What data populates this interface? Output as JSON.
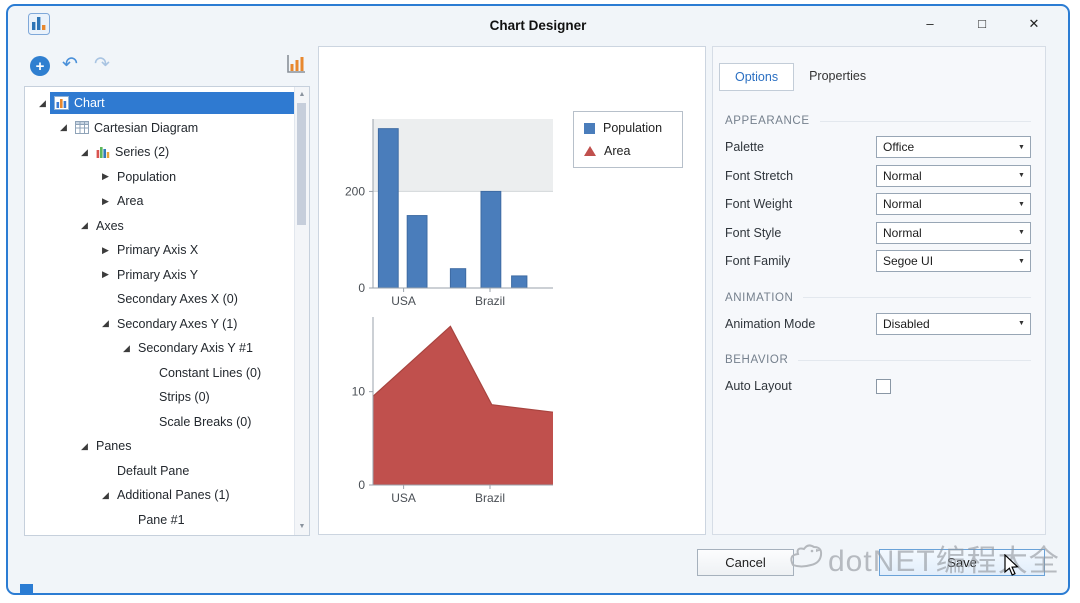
{
  "window": {
    "title": "Chart Designer",
    "minimize_glyph": "–",
    "maximize_glyph": "□",
    "close_glyph": "✕"
  },
  "toolbar": {
    "add_glyph": "+",
    "undo_glyph": "↶",
    "redo_glyph": "↷"
  },
  "icons": {
    "scroll_up": "▲",
    "scroll_down": "▼",
    "dropdown_arrow": "▼",
    "expander_expanded": "◢",
    "expander_collapsed": "▶"
  },
  "colors": {
    "selection": "#2f7ad1",
    "window_border": "#2b7cd3",
    "bar_series": "#4a7dbb",
    "area_series": "#c0504d",
    "tab_active_text": "#2a6fc2"
  },
  "tree": {
    "items": [
      {
        "label": "Chart",
        "level": 0,
        "state": "expanded",
        "icon": "chart-node-icon",
        "selected": true
      },
      {
        "label": "Cartesian Diagram",
        "level": 1,
        "state": "expanded",
        "icon": "diagram-grid-icon"
      },
      {
        "label": "Series (2)",
        "level": 2,
        "state": "expanded",
        "icon": "series-bars-icon"
      },
      {
        "label": "Population",
        "level": 3,
        "state": "collapsed"
      },
      {
        "label": "Area",
        "level": 3,
        "state": "collapsed"
      },
      {
        "label": "Axes",
        "level": 2,
        "state": "expanded"
      },
      {
        "label": "Primary Axis X",
        "level": 3,
        "state": "collapsed"
      },
      {
        "label": "Primary Axis Y",
        "level": 3,
        "state": "collapsed"
      },
      {
        "label": "Secondary Axes X (0)",
        "level": 3,
        "state": "none"
      },
      {
        "label": "Secondary Axes Y (1)",
        "level": 3,
        "state": "expanded"
      },
      {
        "label": "Secondary Axis Y #1",
        "level": 4,
        "state": "expanded"
      },
      {
        "label": "Constant Lines (0)",
        "level": 5,
        "state": "none"
      },
      {
        "label": "Strips (0)",
        "level": 5,
        "state": "none"
      },
      {
        "label": "Scale Breaks (0)",
        "level": 5,
        "state": "none"
      },
      {
        "label": "Panes",
        "level": 2,
        "state": "expanded"
      },
      {
        "label": "Default Pane",
        "level": 3,
        "state": "none"
      },
      {
        "label": "Additional Panes (1)",
        "level": 3,
        "state": "expanded"
      },
      {
        "label": "Pane #1",
        "level": 4,
        "state": "none"
      }
    ]
  },
  "chart_data": [
    {
      "type": "bar",
      "pane": "Default Pane",
      "series_name": "Population",
      "x_tick_labels": [
        "USA",
        "Brazil"
      ],
      "tick_x": [
        0.17,
        0.65
      ],
      "y_ticks": [
        0,
        200
      ],
      "ylim": [
        0,
        350
      ],
      "values": [
        330,
        150,
        40,
        200,
        25
      ],
      "bar_x": [
        0.03,
        0.19,
        0.43,
        0.6,
        0.77
      ],
      "bar_w": [
        0.11,
        0.11,
        0.085,
        0.11,
        0.085
      ],
      "color": "#4a7dbb",
      "band_above": 200,
      "grid": true,
      "legend_position": "top-right"
    },
    {
      "type": "area",
      "pane": "Pane #1",
      "series_name": "Area",
      "x_tick_labels": [
        "USA",
        "Brazil"
      ],
      "tick_x": [
        0.17,
        0.65
      ],
      "y_ticks": [
        0,
        10
      ],
      "ylim": [
        0,
        18
      ],
      "points_x": [
        0,
        0.43,
        0.66,
        1
      ],
      "points_y": [
        9.5,
        17,
        8.6,
        7.8
      ],
      "color": "#c0504d"
    }
  ],
  "legend": [
    {
      "label": "Population",
      "marker": "square",
      "color": "#4a7dbb"
    },
    {
      "label": "Area",
      "marker": "triangle",
      "color": "#c0504d"
    }
  ],
  "options": {
    "tabs": [
      {
        "label": "Options",
        "active": true
      },
      {
        "label": "Properties",
        "active": false
      }
    ],
    "sections": [
      {
        "title": "APPEARANCE",
        "rows": [
          {
            "label": "Palette",
            "control": "dropdown",
            "value": "Office"
          },
          {
            "label": "Font Stretch",
            "control": "dropdown",
            "value": "Normal"
          },
          {
            "label": "Font Weight",
            "control": "dropdown",
            "value": "Normal"
          },
          {
            "label": "Font Style",
            "control": "dropdown",
            "value": "Normal"
          },
          {
            "label": "Font Family",
            "control": "dropdown",
            "value": "Segoe UI"
          }
        ]
      },
      {
        "title": "ANIMATION",
        "rows": [
          {
            "label": "Animation Mode",
            "control": "dropdown",
            "value": "Disabled"
          }
        ]
      },
      {
        "title": "BEHAVIOR",
        "rows": [
          {
            "label": "Auto Layout",
            "control": "checkbox",
            "checked": false
          }
        ]
      }
    ]
  },
  "footer": {
    "cancel_label": "Cancel",
    "save_label": "Save"
  },
  "watermark": {
    "text": "dotNET编程大全"
  }
}
